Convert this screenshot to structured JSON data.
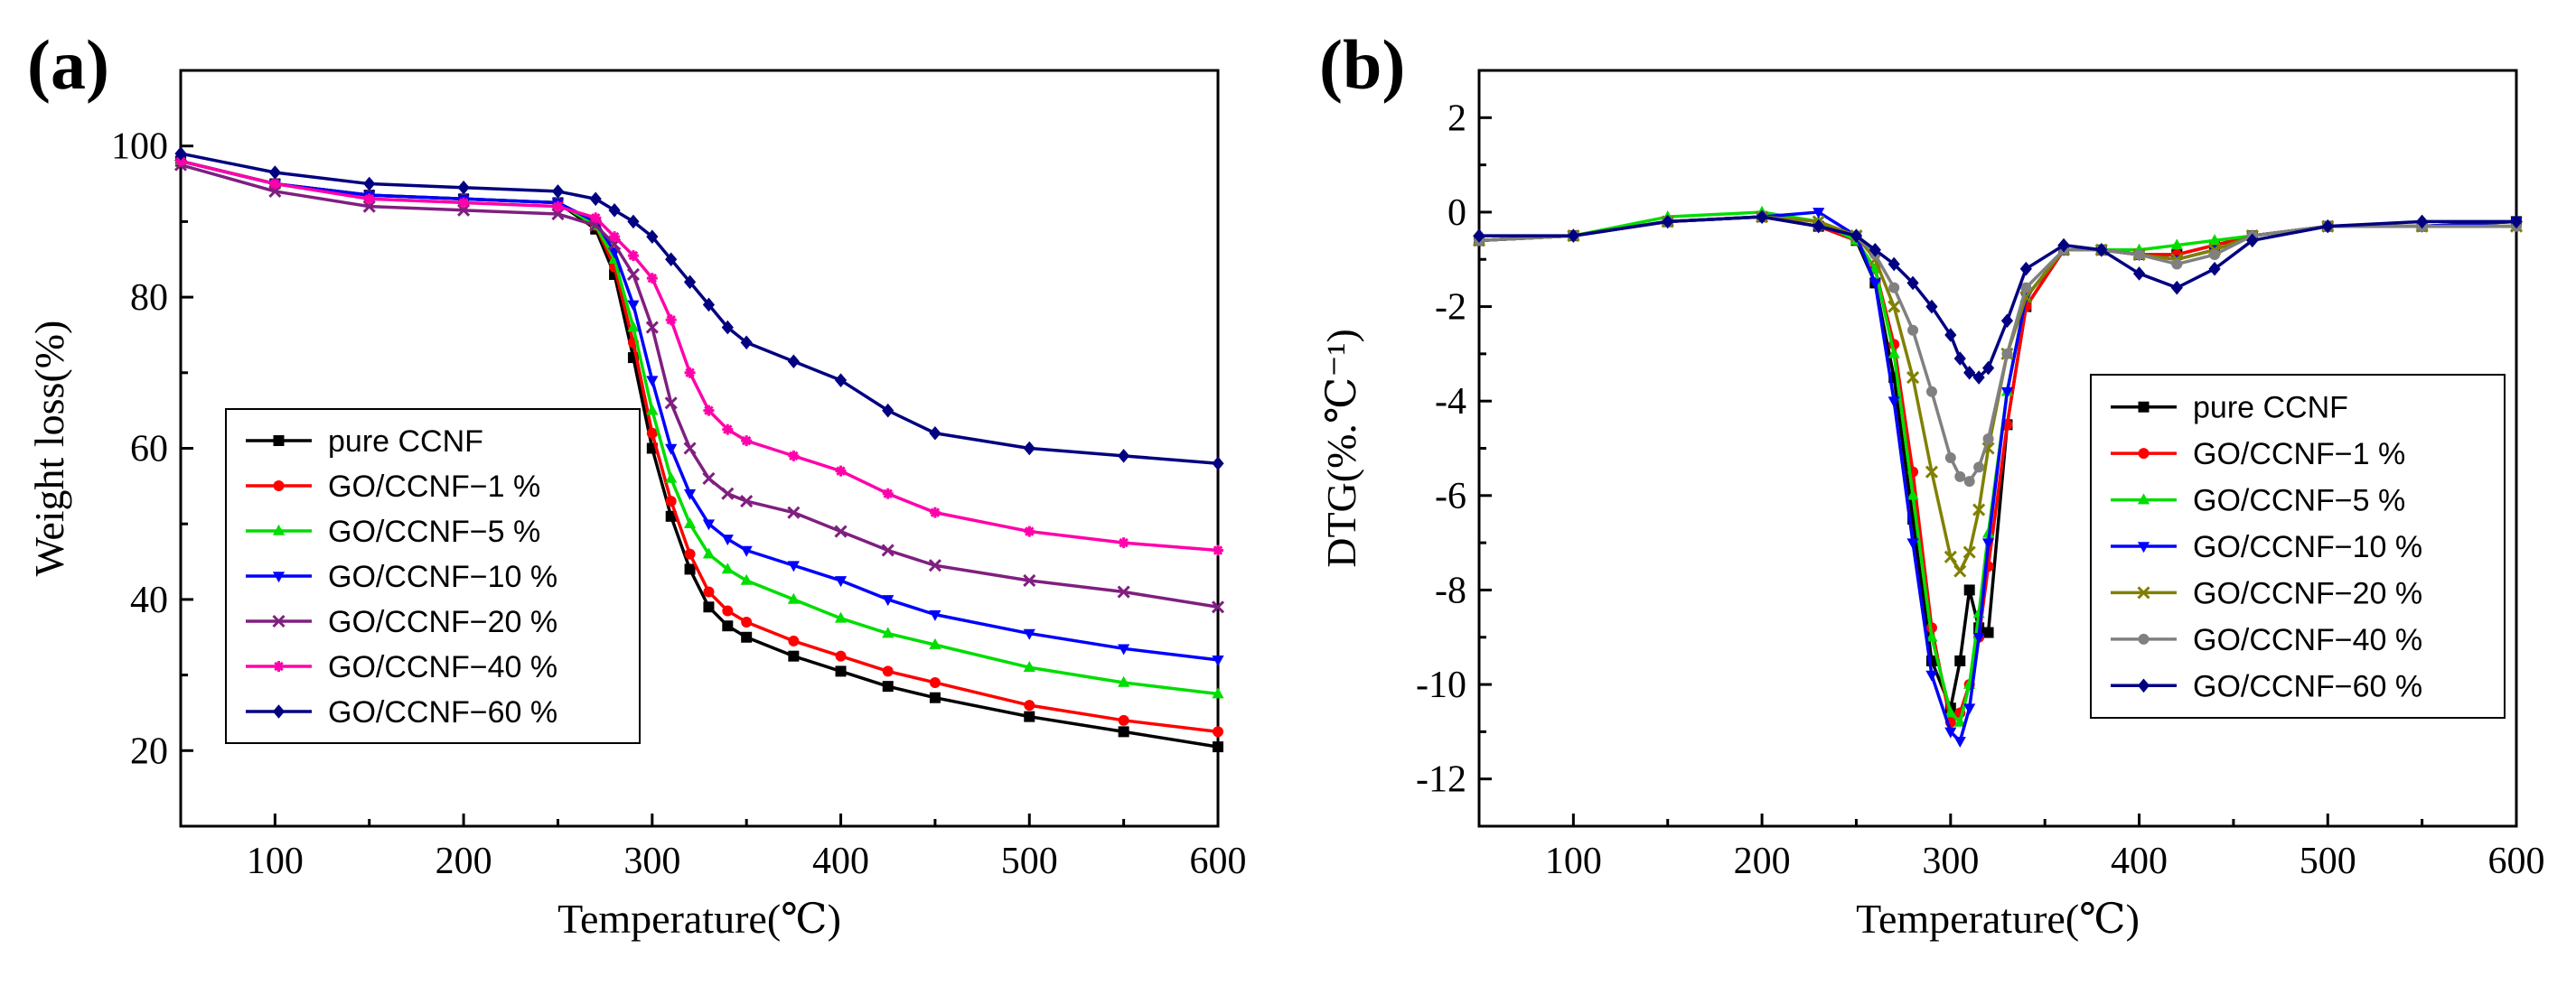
{
  "chart_data": [
    {
      "panel": "(a)",
      "type": "line",
      "xlabel": "Temperature(℃)",
      "ylabel": "Weight loss(%)",
      "xlim": [
        50,
        600
      ],
      "ylim": [
        10,
        110
      ],
      "xticks": [
        100,
        200,
        300,
        400,
        500,
        600
      ],
      "yticks": [
        20,
        40,
        60,
        80,
        100
      ],
      "legend_position": "center-left",
      "x": [
        50,
        100,
        150,
        200,
        250,
        270,
        280,
        290,
        300,
        310,
        320,
        330,
        340,
        350,
        375,
        400,
        425,
        450,
        500,
        550,
        600
      ],
      "series": [
        {
          "name": "pure CCNF",
          "color": "#000000",
          "marker": "square",
          "values": [
            98,
            95,
            93.5,
            93,
            92.5,
            89,
            83,
            72,
            60,
            51,
            44,
            39,
            36.5,
            35,
            32.5,
            30.5,
            28.5,
            27,
            24.5,
            22.5,
            20.5
          ]
        },
        {
          "name": "GO/CCNF−1 %",
          "color": "#ff0000",
          "marker": "circle",
          "values": [
            98,
            95,
            93.5,
            93,
            92.5,
            89.5,
            84,
            74,
            62,
            53,
            46,
            41,
            38.5,
            37,
            34.5,
            32.5,
            30.5,
            29,
            26,
            24,
            22.5
          ]
        },
        {
          "name": "GO/CCNF−5 %",
          "color": "#00dd00",
          "marker": "triangle-up",
          "values": [
            98,
            95,
            93.5,
            93,
            92.5,
            89.5,
            85,
            76,
            65,
            56,
            50,
            46,
            44,
            42.5,
            40,
            37.5,
            35.5,
            34,
            31,
            29,
            27.5
          ]
        },
        {
          "name": "GO/CCNF−10 %",
          "color": "#0000ff",
          "marker": "triangle-down",
          "values": [
            98,
            95,
            93.5,
            93,
            92.5,
            90,
            86,
            79,
            69,
            60,
            54,
            50,
            48,
            46.5,
            44.5,
            42.5,
            40,
            38,
            35.5,
            33.5,
            32
          ]
        },
        {
          "name": "GO/CCNF−20 %",
          "color": "#7f1f7f",
          "marker": "x",
          "values": [
            97.5,
            94,
            92,
            91.5,
            91,
            89.5,
            87,
            83,
            76,
            66,
            60,
            56,
            54,
            53,
            51.5,
            49,
            46.5,
            44.5,
            42.5,
            41,
            39
          ]
        },
        {
          "name": "GO/CCNF−40 %",
          "color": "#ff00aa",
          "marker": "star",
          "values": [
            98,
            95,
            93,
            92.5,
            92,
            90.5,
            88,
            85.5,
            82.5,
            77,
            70,
            65,
            62.5,
            61,
            59,
            57,
            54,
            51.5,
            49,
            47.5,
            46.5
          ]
        },
        {
          "name": "GO/CCNF−60 %",
          "color": "#000080",
          "marker": "diamond",
          "values": [
            99,
            96.5,
            95,
            94.5,
            94,
            93,
            91.5,
            90,
            88,
            85,
            82,
            79,
            76,
            74,
            71.5,
            69,
            65,
            62,
            60,
            59,
            58
          ]
        }
      ]
    },
    {
      "panel": "(b)",
      "type": "line",
      "xlabel": "Temperature(℃)",
      "ylabel": "DTG(%.℃⁻¹)",
      "xlim": [
        50,
        600
      ],
      "ylim": [
        -13,
        3
      ],
      "xticks": [
        100,
        200,
        300,
        400,
        500,
        600
      ],
      "yticks": [
        2,
        0,
        -2,
        -4,
        -6,
        -8,
        -10,
        -12
      ],
      "legend_position": "center-right",
      "x": [
        50,
        100,
        150,
        200,
        230,
        250,
        260,
        270,
        280,
        290,
        300,
        305,
        310,
        315,
        320,
        330,
        340,
        360,
        380,
        400,
        420,
        440,
        460,
        500,
        550,
        600
      ],
      "series": [
        {
          "name": "pure CCNF",
          "color": "#000000",
          "marker": "square",
          "values": [
            -0.6,
            -0.5,
            -0.2,
            -0.1,
            -0.3,
            -0.6,
            -1.5,
            -3.5,
            -6.5,
            -9.5,
            -10.5,
            -9.5,
            -8,
            -8.8,
            -8.9,
            -4.5,
            -2,
            -0.8,
            -0.8,
            -0.9,
            -0.9,
            -0.7,
            -0.5,
            -0.3,
            -0.3,
            -0.2
          ]
        },
        {
          "name": "GO/CCNF−1 %",
          "color": "#ff0000",
          "marker": "circle",
          "values": [
            -0.6,
            -0.5,
            -0.2,
            -0.1,
            -0.3,
            -0.6,
            -1.2,
            -2.8,
            -5.5,
            -8.8,
            -10.8,
            -10.6,
            -10,
            -9,
            -7.5,
            -4.5,
            -2,
            -0.8,
            -0.8,
            -0.9,
            -0.9,
            -0.7,
            -0.5,
            -0.3,
            -0.3,
            -0.3
          ]
        },
        {
          "name": "GO/CCNF−5 %",
          "color": "#00dd00",
          "marker": "triangle-up",
          "values": [
            -0.6,
            -0.5,
            -0.1,
            0,
            -0.2,
            -0.6,
            -1.2,
            -3,
            -6,
            -9,
            -10.6,
            -10.8,
            -10,
            -8.5,
            -6.8,
            -3.8,
            -1.8,
            -0.8,
            -0.8,
            -0.8,
            -0.7,
            -0.6,
            -0.5,
            -0.3,
            -0.3,
            -0.3
          ]
        },
        {
          "name": "GO/CCNF−10 %",
          "color": "#0000ff",
          "marker": "triangle-down",
          "values": [
            -0.6,
            -0.5,
            -0.2,
            -0.1,
            0,
            -0.5,
            -1.5,
            -4,
            -7,
            -9.8,
            -11,
            -11.2,
            -10.5,
            -9,
            -7,
            -3.8,
            -1.8,
            -0.8,
            -0.8,
            -0.9,
            -1,
            -0.8,
            -0.5,
            -0.3,
            -0.3,
            -0.2
          ]
        },
        {
          "name": "GO/CCNF−20 %",
          "color": "#808000",
          "marker": "x",
          "values": [
            -0.6,
            -0.5,
            -0.2,
            -0.1,
            -0.2,
            -0.5,
            -1,
            -2,
            -3.5,
            -5.5,
            -7.3,
            -7.6,
            -7.2,
            -6.3,
            -5,
            -3,
            -1.8,
            -0.8,
            -0.8,
            -0.9,
            -1,
            -0.8,
            -0.5,
            -0.3,
            -0.3,
            -0.3
          ]
        },
        {
          "name": "GO/CCNF−40 %",
          "color": "#808080",
          "marker": "circle",
          "values": [
            -0.6,
            -0.5,
            -0.2,
            -0.1,
            -0.3,
            -0.5,
            -0.9,
            -1.6,
            -2.5,
            -3.8,
            -5.2,
            -5.6,
            -5.7,
            -5.4,
            -4.8,
            -3,
            -1.6,
            -0.8,
            -0.8,
            -0.9,
            -1.1,
            -0.9,
            -0.5,
            -0.3,
            -0.3,
            -0.3
          ]
        },
        {
          "name": "GO/CCNF−60 %",
          "color": "#000080",
          "marker": "diamond",
          "values": [
            -0.5,
            -0.5,
            -0.2,
            -0.1,
            -0.3,
            -0.5,
            -0.8,
            -1.1,
            -1.5,
            -2,
            -2.6,
            -3.1,
            -3.4,
            -3.5,
            -3.3,
            -2.3,
            -1.2,
            -0.7,
            -0.8,
            -1.3,
            -1.6,
            -1.2,
            -0.6,
            -0.3,
            -0.2,
            -0.2
          ]
        }
      ]
    }
  ]
}
